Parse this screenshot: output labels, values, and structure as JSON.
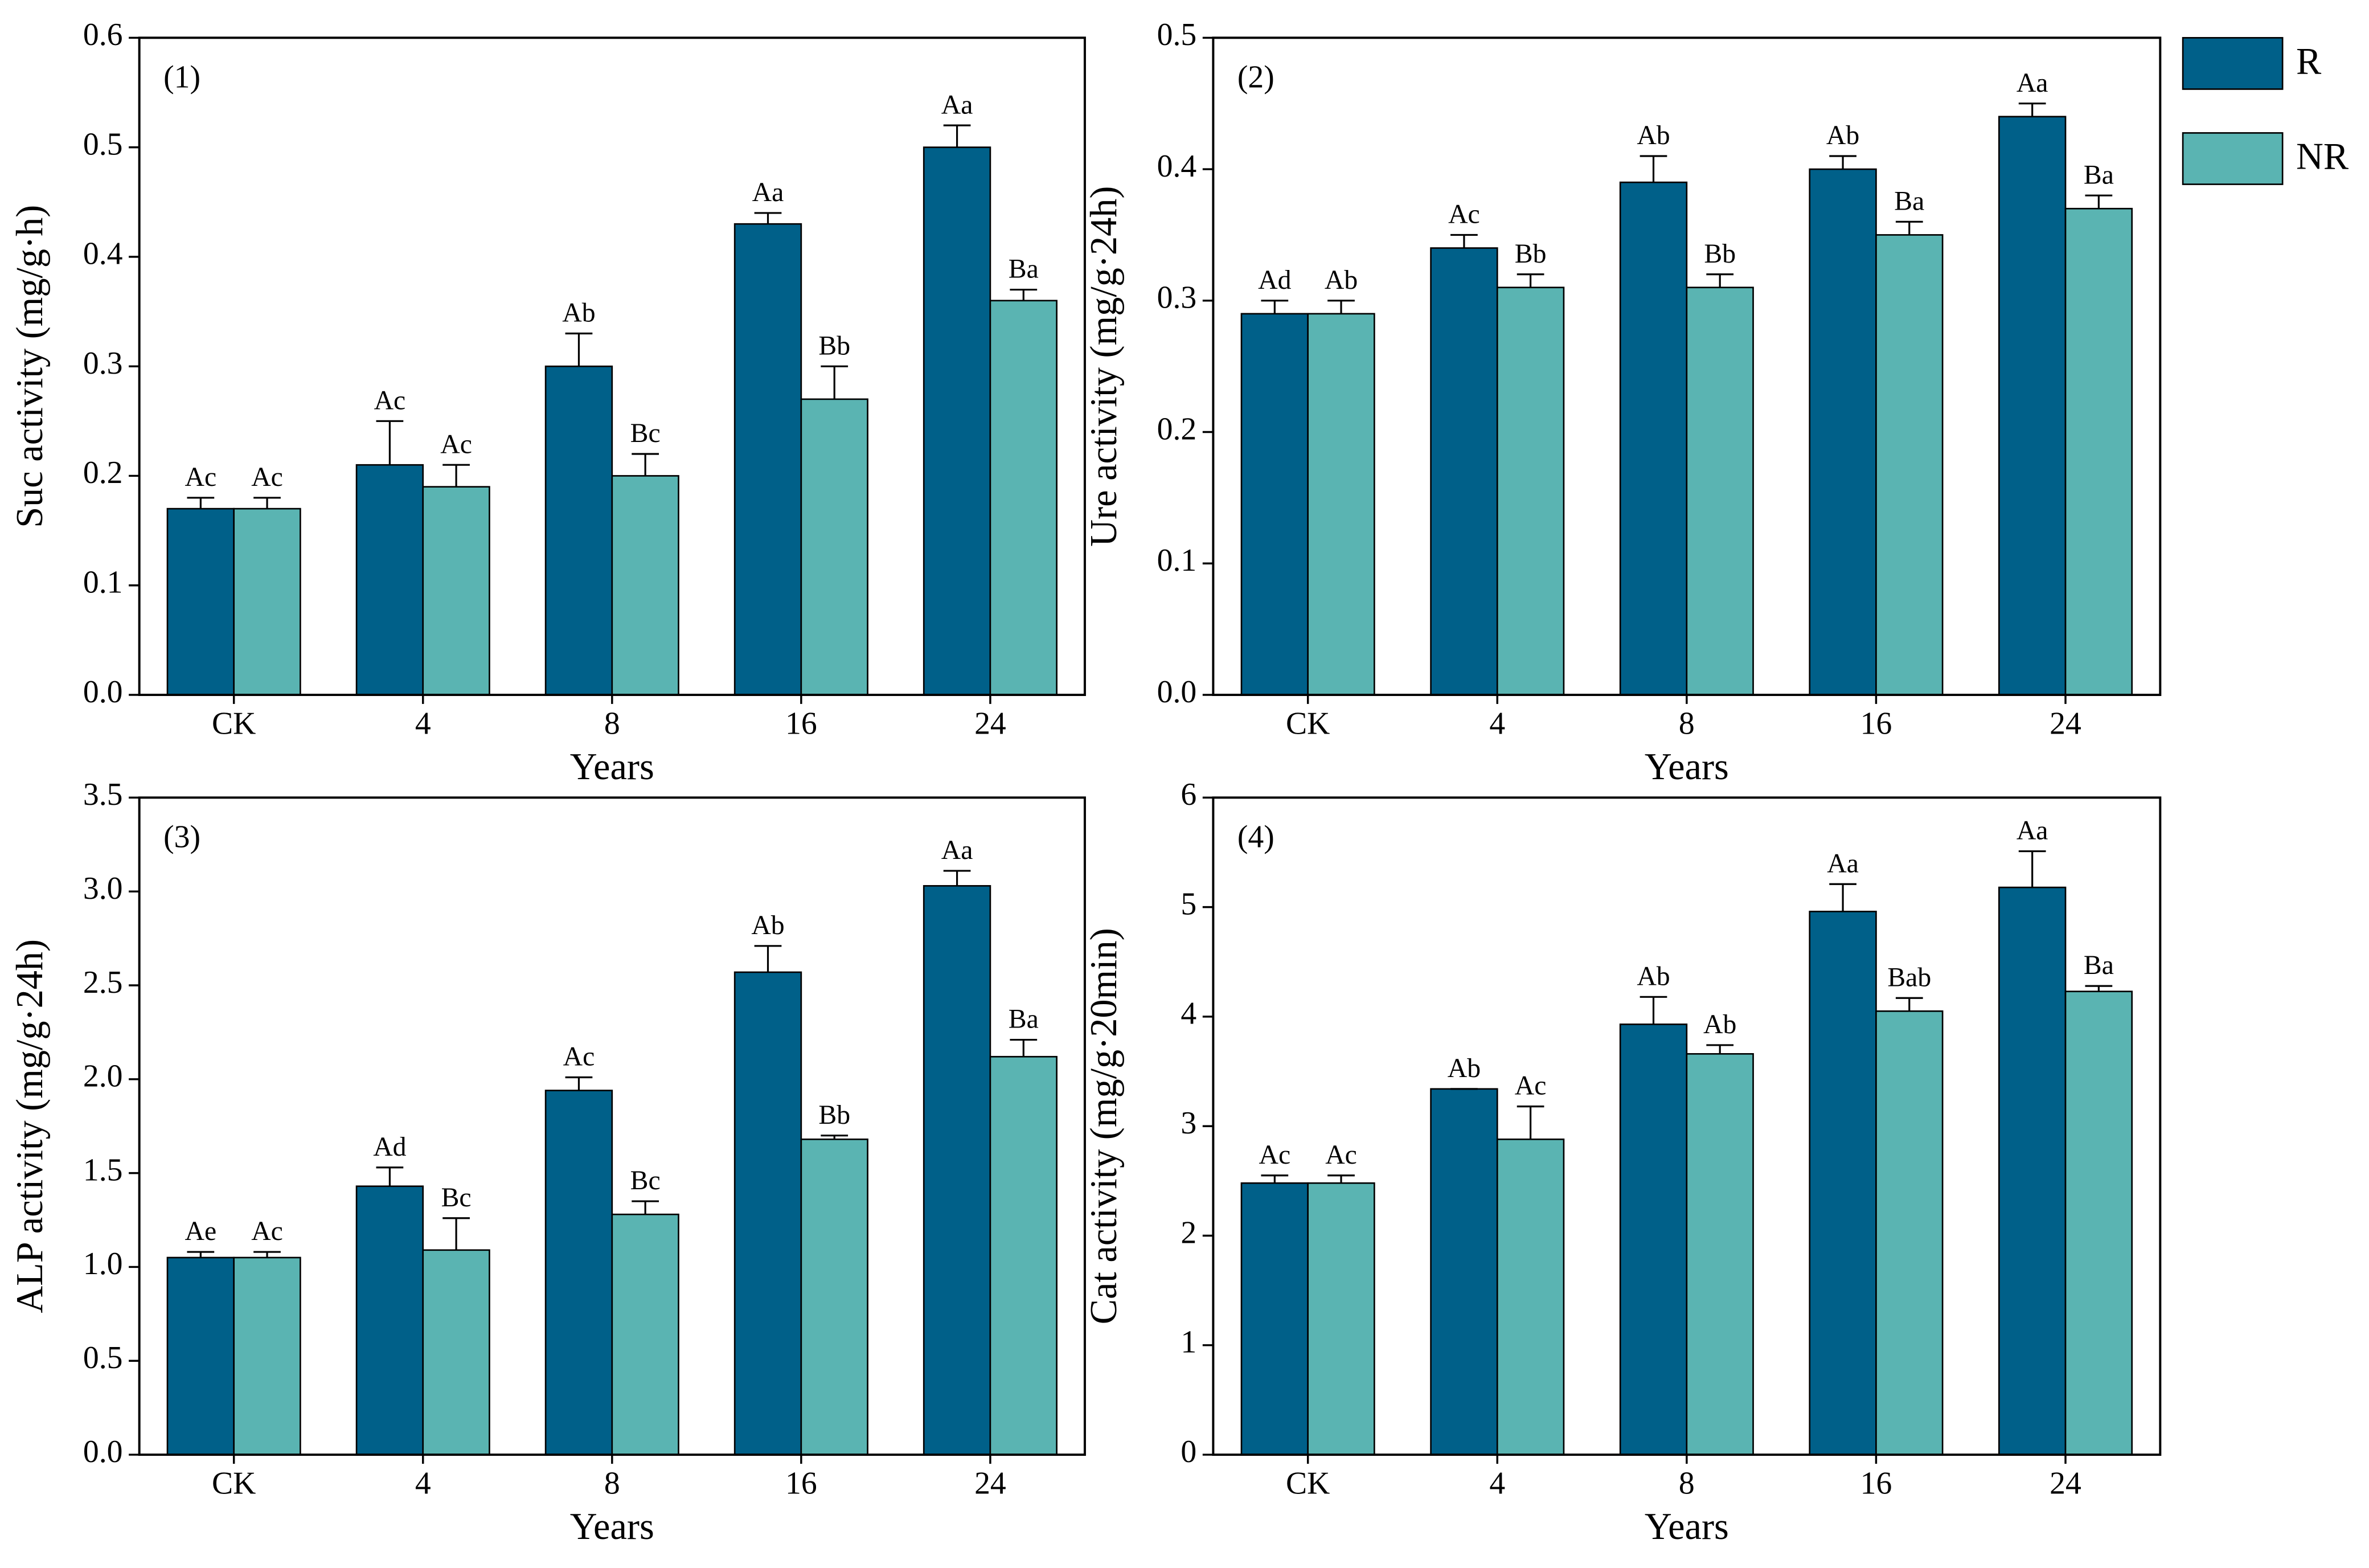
{
  "chart_data": [
    {
      "type": "bar",
      "panel": "(1)",
      "y_label": "Suc activity (mg/g·h)",
      "x_label": "Years",
      "categories": [
        "CK",
        "4",
        "8",
        "16",
        "24"
      ],
      "series": [
        {
          "color": "#006089",
          "values": [
            0.17,
            0.21,
            0.3,
            0.43,
            0.5
          ],
          "errors": [
            0.01,
            0.04,
            0.03,
            0.01,
            0.02
          ],
          "labels": [
            "Ac",
            "Ac",
            "Ab",
            "Aa",
            "Aa"
          ]
        },
        {
          "color": "#5ab4b2",
          "values": [
            0.17,
            0.19,
            0.2,
            0.27,
            0.36
          ],
          "errors": [
            0.01,
            0.02,
            0.02,
            0.03,
            0.01
          ],
          "labels": [
            "Ac",
            "Ac",
            "Bc",
            "Bb",
            "Ba"
          ]
        }
      ],
      "ylim": [
        0,
        0.6
      ],
      "yticks": [
        {
          "value": 0,
          "label": "0.0"
        },
        0.1,
        0.2,
        0.3,
        0.4,
        0.5,
        0.6
      ]
    },
    {
      "type": "bar",
      "panel": "(2)",
      "y_label": "Ure activity (mg/g·24h)",
      "x_label": "Years",
      "categories": [
        "CK",
        "4",
        "8",
        "16",
        "24"
      ],
      "series": [
        {
          "name": "R",
          "color": "#006089",
          "values": [
            0.29,
            0.34,
            0.39,
            0.4,
            0.44
          ],
          "errors": [
            0.01,
            0.01,
            0.02,
            0.01,
            0.01
          ],
          "labels": [
            "Ad",
            "Ac",
            "Ab",
            "Ab",
            "Aa"
          ]
        },
        {
          "name": "NR",
          "color": "#5ab4b2",
          "values": [
            0.29,
            0.31,
            0.31,
            0.35,
            0.37
          ],
          "errors": [
            0.01,
            0.01,
            0.01,
            0.01,
            0.01
          ],
          "labels": [
            "Ab",
            "Bb",
            "Bb",
            "Ba",
            "Ba"
          ]
        }
      ],
      "ylim": [
        0,
        0.5
      ],
      "yticks": [
        {
          "value": 0,
          "label": "0.0"
        },
        0.1,
        0.2,
        0.3,
        0.4,
        0.5
      ],
      "legend": "outside right"
    },
    {
      "type": "bar",
      "panel": "(3)",
      "y_label": "ALP activity (mg/g·24h)",
      "x_label": "Years",
      "categories": [
        "CK",
        "4",
        "8",
        "16",
        "24"
      ],
      "series": [
        {
          "color": "#006089",
          "values": [
            1.05,
            1.43,
            1.94,
            2.57,
            3.03
          ],
          "errors": [
            0.03,
            0.1,
            0.07,
            0.14,
            0.08
          ],
          "labels": [
            "Ae",
            "Ad",
            "Ac",
            "Ab",
            "Aa"
          ]
        },
        {
          "color": "#5ab4b2",
          "values": [
            1.05,
            1.09,
            1.28,
            1.68,
            2.12
          ],
          "errors": [
            0.03,
            0.17,
            0.07,
            0.02,
            0.09
          ],
          "labels": [
            "Ac",
            "Bc",
            "Bc",
            "Bb",
            "Ba"
          ]
        }
      ],
      "ylim": [
        0,
        3.5
      ],
      "yticks": [
        {
          "value": 0,
          "label": "0.0"
        },
        0.5,
        {
          "value": 1,
          "label": "1.0"
        },
        1.5,
        {
          "value": 2,
          "label": "2.0"
        },
        2.5,
        {
          "value": 3,
          "label": "3.0"
        },
        3.5
      ]
    },
    {
      "type": "bar",
      "panel": "(4)",
      "y_label": "Cat activity (mg/g·20min)",
      "x_label": "Years",
      "categories": [
        "CK",
        "4",
        "8",
        "16",
        "24"
      ],
      "series": [
        {
          "color": "#006089",
          "values": [
            2.48,
            3.34,
            3.93,
            4.96,
            5.18
          ],
          "errors": [
            0.07,
            0,
            0.25,
            0.25,
            0.33
          ],
          "labels": [
            "Ac",
            "Ab",
            "Ab",
            "Aa",
            "Aa"
          ]
        },
        {
          "color": "#5ab4b2",
          "values": [
            2.48,
            2.88,
            3.66,
            4.05,
            4.23
          ],
          "errors": [
            0.07,
            0.3,
            0.08,
            0.12,
            0.05
          ],
          "labels": [
            "Ac",
            "Ac",
            "Ab",
            "Bab",
            "Ba"
          ]
        }
      ],
      "ylim": [
        0,
        6
      ],
      "yticks": [
        0,
        1,
        2,
        3,
        4,
        5,
        6
      ]
    }
  ]
}
